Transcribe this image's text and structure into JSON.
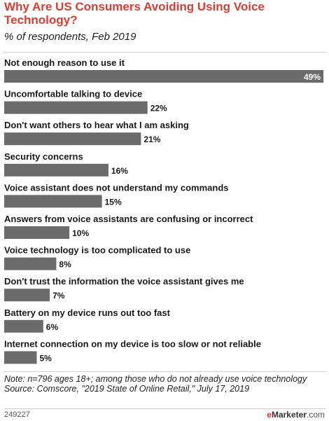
{
  "header": {
    "title": "Why Are US Consumers Avoiding Using Voice Technology?",
    "subtitle": "% of respondents, Feb 2019"
  },
  "chart_data": {
    "type": "bar",
    "orientation": "horizontal",
    "title": "Why Are US Consumers Avoiding Using Voice Technology?",
    "subtitle": "% of respondents, Feb 2019",
    "categories": [
      "Not enough reason to use it",
      "Uncomfortable talking to device",
      "Don't want others to hear what I am asking",
      "Security concerns",
      "Voice assistant does not understand my commands",
      "Answers from voice assistants are confusing or incorrect",
      "Voice technology is too complicated to use",
      "Don't trust the information the voice assistant gives me",
      "Battery on my device runs out too fast",
      "Internet connection on my device is too slow or not reliable"
    ],
    "values": [
      49,
      22,
      21,
      16,
      15,
      10,
      8,
      7,
      6,
      5
    ],
    "value_labels": [
      "49%",
      "22%",
      "21%",
      "16%",
      "15%",
      "10%",
      "8%",
      "7%",
      "6%",
      "5%"
    ],
    "xlim": [
      0,
      49
    ],
    "bar_color": "#6b6b6b",
    "grid": false,
    "legend": "none"
  },
  "footer": {
    "note": "Note: n=796 ages 18+; among those who do not already use voice technology",
    "source": "Source: Comscore, \"2019 State of Online Retail,\" July 17, 2019",
    "chart_id": "249227",
    "brand_e": "e",
    "brand_strong": "Marketer",
    "brand_suffix": ".com"
  },
  "colors": {
    "title": "#e03c31",
    "bar": "#6b6b6b",
    "text": "#1a1a1a"
  }
}
